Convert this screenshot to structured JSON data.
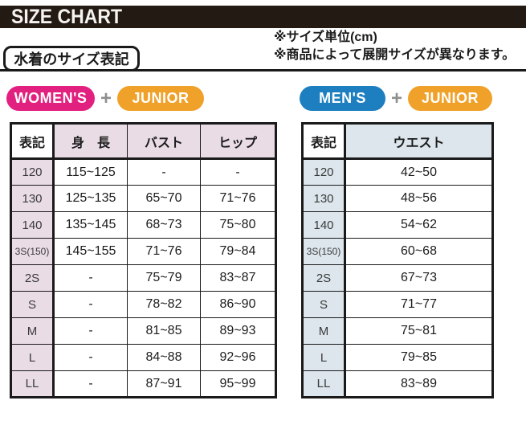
{
  "header": {
    "title": "SIZE CHART",
    "section_label": "水着のサイズ表記",
    "unit_note": "※サイズ単位(cm)",
    "size_note": "※商品によって展開サイズが異なります。"
  },
  "colors": {
    "title_bar_bg": "#241a14",
    "border": "#1a1a1a",
    "womens": "#e2207f",
    "mens": "#1e7fc0",
    "junior": "#f0a129",
    "plus": "#8f8f8f",
    "women_cell": "#e9dce5",
    "men_cell": "#dce6ec"
  },
  "badge_groups": [
    {
      "name": "womens-junior",
      "separator": "+",
      "badges": [
        {
          "label": "WOMEN'S"
        },
        {
          "label": "JUNIOR"
        }
      ]
    },
    {
      "name": "mens-junior",
      "separator": "+",
      "badges": [
        {
          "label": "MEN'S"
        },
        {
          "label": "JUNIOR"
        }
      ]
    }
  ],
  "tables": [
    {
      "id": "womens",
      "headers": [
        "表記",
        "身　長",
        "バスト",
        "ヒップ"
      ],
      "rows": [
        {
          "size": "120",
          "cells": [
            "115~125",
            "-",
            "-"
          ]
        },
        {
          "size": "130",
          "cells": [
            "125~135",
            "65~70",
            "71~76"
          ]
        },
        {
          "size": "140",
          "cells": [
            "135~145",
            "68~73",
            "75~80"
          ]
        },
        {
          "size": "3S(150)",
          "cells": [
            "145~155",
            "71~76",
            "79~84"
          ]
        },
        {
          "size": "2S",
          "cells": [
            "-",
            "75~79",
            "83~87"
          ]
        },
        {
          "size": "S",
          "cells": [
            "-",
            "78~82",
            "86~90"
          ]
        },
        {
          "size": "M",
          "cells": [
            "-",
            "81~85",
            "89~93"
          ]
        },
        {
          "size": "L",
          "cells": [
            "-",
            "84~88",
            "92~96"
          ]
        },
        {
          "size": "LL",
          "cells": [
            "-",
            "87~91",
            "95~99"
          ]
        }
      ]
    },
    {
      "id": "mens",
      "headers": [
        "表記",
        "ウエスト"
      ],
      "rows": [
        {
          "size": "120",
          "cells": [
            "42~50"
          ]
        },
        {
          "size": "130",
          "cells": [
            "48~56"
          ]
        },
        {
          "size": "140",
          "cells": [
            "54~62"
          ]
        },
        {
          "size": "3S(150)",
          "cells": [
            "60~68"
          ]
        },
        {
          "size": "2S",
          "cells": [
            "67~73"
          ]
        },
        {
          "size": "S",
          "cells": [
            "71~77"
          ]
        },
        {
          "size": "M",
          "cells": [
            "75~81"
          ]
        },
        {
          "size": "L",
          "cells": [
            "79~85"
          ]
        },
        {
          "size": "LL",
          "cells": [
            "83~89"
          ]
        }
      ]
    }
  ]
}
